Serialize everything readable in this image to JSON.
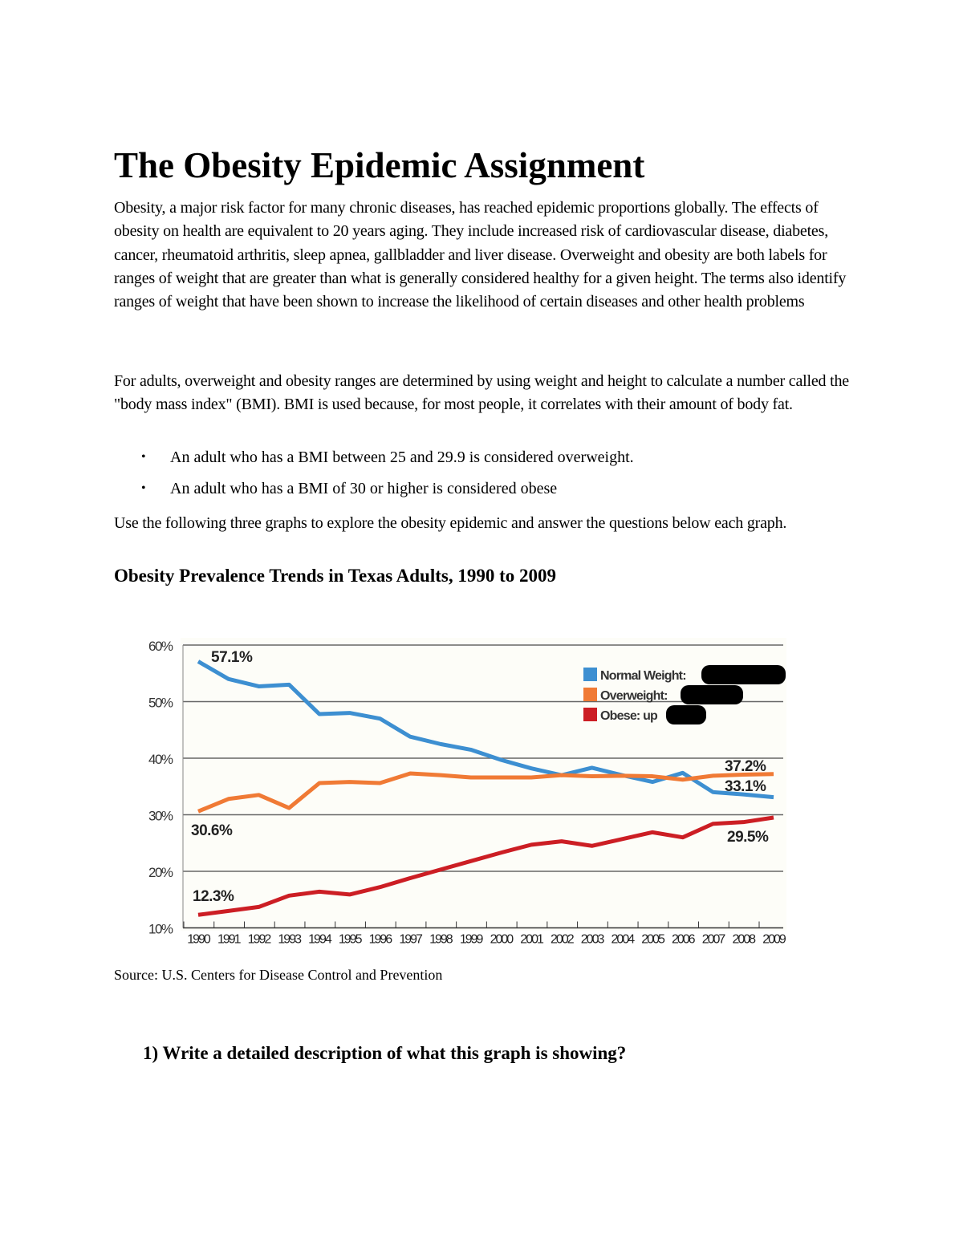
{
  "title": "The Obesity Epidemic Assignment",
  "paragraphs": [
    "Obesity, a major risk factor for many chronic diseases, has reached epidemic proportions globally. The effects of obesity on health are equivalent to 20 years aging. They include increased risk of cardiovascular disease, diabetes, cancer, rheumatoid arthritis, sleep apnea, gallbladder and liver disease. Overweight and obesity are both labels for ranges of weight that are greater than what is generally considered healthy for a given height. The terms also identify ranges of weight that have been shown to increase the likelihood of certain diseases and other health problems",
    "For adults, overweight and obesity ranges are determined by using weight and height to calculate a number called the \"body mass index\" (BMI). BMI is used because, for most people, it correlates with their amount of body fat.",
    "Use the following three graphs to explore the obesity epidemic and answer the questions below each graph."
  ],
  "bullets": [
    "An adult who has a BMI between 25 and 29.9 is considered overweight.",
    "An adult who has a BMI of 30 or higher is considered obese"
  ],
  "chart_heading": "Obesity Prevalence Trends in Texas Adults, 1990 to 2009",
  "source": "Source: U.S. Centers for Disease Control and Prevention",
  "question": "1)  Write a detailed description of what this graph is showing?",
  "chart_data": {
    "type": "line",
    "x": [
      1990,
      1991,
      1992,
      1993,
      1994,
      1995,
      1996,
      1997,
      1998,
      1999,
      2000,
      2001,
      2002,
      2003,
      2004,
      2005,
      2006,
      2007,
      2008,
      2009
    ],
    "ylim": [
      10,
      60
    ],
    "yticks": [
      "10%",
      "20%",
      "30%",
      "40%",
      "50%",
      "60%"
    ],
    "grid": true,
    "legend_position": "top-right",
    "series": [
      {
        "name": "Normal Weight:",
        "color": "#3d8fd1",
        "values": [
          57.1,
          54,
          52.7,
          53,
          47.8,
          48,
          47,
          43.8,
          42.5,
          41.5,
          39.7,
          38.2,
          37,
          38.3,
          37,
          35.8,
          37.4,
          34,
          33.6,
          33.1
        ]
      },
      {
        "name": "Overweight:",
        "color": "#f07a35",
        "values": [
          30.6,
          32.8,
          33.5,
          31.2,
          35.6,
          35.8,
          35.6,
          37.3,
          37,
          36.6,
          36.6,
          36.6,
          37,
          36.8,
          36.9,
          36.8,
          36.2,
          36.9,
          37.1,
          37.2
        ]
      },
      {
        "name": "Obese: up",
        "color": "#cc1e24",
        "values": [
          12.3,
          13,
          13.7,
          15.7,
          16.4,
          15.9,
          17.2,
          18.8,
          20.3,
          21.8,
          23.3,
          24.7,
          25.3,
          24.5,
          25.7,
          26.9,
          26,
          28.4,
          28.7,
          29.5
        ]
      }
    ],
    "annotations": [
      "57.1%",
      "30.6%",
      "12.3%",
      "37.2%",
      "33.1%",
      "29.5%"
    ]
  }
}
